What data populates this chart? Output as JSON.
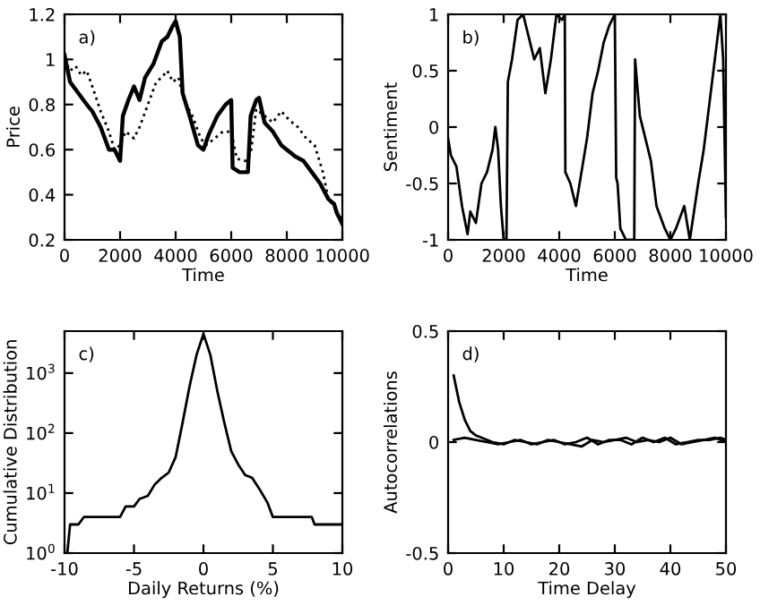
{
  "chart_data": [
    {
      "type": "line",
      "xlabel": "Time",
      "ylabel": "Price",
      "annotations": [
        "a)"
      ],
      "xlim": [
        0,
        10000
      ],
      "xticks": [
        0,
        2000,
        4000,
        6000,
        8000,
        10000
      ],
      "ylim": [
        0.2,
        1.2
      ],
      "yticks": [
        0.2,
        0.4,
        0.6,
        0.8,
        1,
        1.2
      ],
      "grid": false,
      "series": [
        {
          "color": "#000000",
          "line_style": "solid",
          "x": [
            0,
            200,
            500,
            800,
            1000,
            1300,
            1600,
            1800,
            2000,
            2100,
            2300,
            2500,
            2700,
            2900,
            3200,
            3500,
            3700,
            3900,
            4000,
            4150,
            4250,
            4500,
            4800,
            5000,
            5200,
            5500,
            5800,
            6000,
            6050,
            6300,
            6600,
            6700,
            6900,
            7000,
            7200,
            7500,
            7800,
            8000,
            8300,
            8600,
            8900,
            9200,
            9500,
            9700,
            9800,
            10000
          ],
          "values": [
            1.02,
            0.9,
            0.85,
            0.8,
            0.77,
            0.7,
            0.6,
            0.6,
            0.55,
            0.75,
            0.82,
            0.88,
            0.82,
            0.92,
            0.98,
            1.08,
            1.1,
            1.15,
            1.17,
            1.1,
            0.85,
            0.75,
            0.62,
            0.6,
            0.67,
            0.75,
            0.8,
            0.82,
            0.52,
            0.5,
            0.5,
            0.75,
            0.82,
            0.83,
            0.72,
            0.68,
            0.62,
            0.6,
            0.57,
            0.55,
            0.5,
            0.45,
            0.38,
            0.36,
            0.32,
            0.27
          ]
        },
        {
          "color": "#000000",
          "line_style": "dotted",
          "x": [
            0,
            200,
            400,
            600,
            800,
            1000,
            1300,
            1600,
            1800,
            2000,
            2200,
            2500,
            2700,
            3000,
            3300,
            3500,
            3700,
            3900,
            4100,
            4300,
            4600,
            4900,
            5100,
            5400,
            5700,
            6000,
            6200,
            6500,
            6700,
            6900,
            7200,
            7500,
            7800,
            8100,
            8400,
            8700,
            9000,
            9300,
            9500,
            9700,
            9850,
            10000
          ],
          "values": [
            1.0,
            0.95,
            0.97,
            0.93,
            0.95,
            0.88,
            0.77,
            0.68,
            0.6,
            0.62,
            0.68,
            0.65,
            0.7,
            0.8,
            0.9,
            0.92,
            0.95,
            0.9,
            0.92,
            0.82,
            0.75,
            0.65,
            0.62,
            0.65,
            0.68,
            0.68,
            0.56,
            0.55,
            0.58,
            0.78,
            0.75,
            0.72,
            0.77,
            0.73,
            0.7,
            0.65,
            0.62,
            0.5,
            0.38,
            0.35,
            0.3,
            0.3
          ]
        }
      ]
    },
    {
      "type": "line",
      "xlabel": "Time",
      "ylabel": "Sentiment",
      "annotations": [
        "b)"
      ],
      "xlim": [
        0,
        10000
      ],
      "xticks": [
        0,
        2000,
        4000,
        6000,
        8000,
        10000
      ],
      "ylim": [
        -1,
        1
      ],
      "yticks": [
        -1,
        -0.5,
        0,
        0.5,
        1
      ],
      "grid": false,
      "series": [
        {
          "color": "#000000",
          "line_style": "solid",
          "x": [
            0,
            100,
            300,
            500,
            700,
            800,
            1000,
            1200,
            1400,
            1600,
            1700,
            1800,
            1900,
            2000,
            2100,
            2150,
            2300,
            2500,
            2700,
            2900,
            3100,
            3300,
            3500,
            3700,
            3900,
            4100,
            4200,
            4220,
            4400,
            4600,
            4800,
            5000,
            5200,
            5400,
            5600,
            5800,
            6000,
            6050,
            6100,
            6200,
            6400,
            6500,
            6700,
            6730,
            6900,
            7100,
            7300,
            7500,
            7800,
            8000,
            8200,
            8500,
            8700,
            9000,
            9200,
            9400,
            9600,
            9800,
            9900,
            10000
          ],
          "values": [
            -0.1,
            -0.25,
            -0.35,
            -0.7,
            -0.95,
            -0.75,
            -0.85,
            -0.5,
            -0.4,
            -0.2,
            0,
            -0.2,
            -0.7,
            -1,
            -1,
            0.4,
            0.6,
            0.95,
            1,
            0.8,
            0.6,
            0.7,
            0.3,
            0.6,
            1,
            0.95,
            1,
            -0.4,
            -0.5,
            -0.7,
            -0.4,
            -0.1,
            0.3,
            0.5,
            0.75,
            0.9,
            1,
            -0.45,
            -0.5,
            -0.9,
            -1,
            -1,
            -1,
            0.6,
            0.1,
            -0.1,
            -0.3,
            -0.7,
            -0.9,
            -1,
            -0.9,
            -0.7,
            -1,
            -0.5,
            -0.2,
            0.2,
            0.6,
            1,
            0.6,
            -0.8
          ]
        }
      ]
    },
    {
      "type": "line",
      "xlabel": "Daily Returns (%)",
      "ylabel": "Cumulative Distribution",
      "annotations": [
        "c)"
      ],
      "log": "y",
      "xlim": [
        -10,
        10
      ],
      "xticks": [
        -10,
        -5,
        0,
        5,
        10
      ],
      "ylim": [
        1,
        5000
      ],
      "yticks": [
        {
          "value": 1,
          "label": "10$^{0}$"
        },
        {
          "value": 10,
          "label": "10$^{1}$"
        },
        {
          "value": 100,
          "label": "10$^{2}$"
        },
        {
          "value": 1000,
          "label": "10$^{3}$"
        }
      ],
      "grid": false,
      "series": [
        {
          "color": "#000000",
          "line_style": "solid",
          "x": [
            -9.8,
            -9.6,
            -9,
            -8.6,
            -6,
            -5.6,
            -5,
            -4.6,
            -4,
            -3.5,
            -3,
            -2.5,
            -2,
            -1.5,
            -1,
            -0.5,
            0,
            0.5,
            1,
            1.5,
            2,
            2.5,
            3,
            3.5,
            4,
            4.6,
            5,
            6,
            7.8,
            8,
            10
          ],
          "values": [
            1,
            3,
            3,
            4,
            4,
            6,
            6,
            8,
            9,
            14,
            18,
            22,
            40,
            150,
            600,
            2000,
            4500,
            2000,
            500,
            150,
            50,
            30,
            20,
            18,
            12,
            7,
            4,
            4,
            4,
            3,
            3
          ]
        }
      ]
    },
    {
      "type": "line",
      "xlabel": "Time Delay",
      "ylabel": "Autocorrelations",
      "annotations": [
        "d)"
      ],
      "xlim": [
        0,
        50
      ],
      "xticks": [
        0,
        10,
        20,
        30,
        40,
        50
      ],
      "ylim": [
        -0.5,
        0.5
      ],
      "yticks": [
        -0.5,
        0,
        0.5
      ],
      "grid": false,
      "series": [
        {
          "color": "#000000",
          "line_style": "solid",
          "x": [
            1,
            2,
            3,
            4,
            5,
            6,
            7,
            8,
            10,
            12,
            14,
            16,
            18,
            20,
            22,
            24,
            26,
            28,
            30,
            32,
            34,
            36,
            38,
            40,
            42,
            44,
            46,
            48,
            50
          ],
          "values": [
            0.3,
            0.18,
            0.1,
            0.05,
            0.03,
            0.02,
            0.01,
            0,
            -0.01,
            0.01,
            0,
            -0.01,
            0.01,
            0,
            -0.01,
            -0.02,
            0.01,
            0,
            0.01,
            0.02,
            0,
            0.01,
            0,
            0.02,
            -0.01,
            0,
            0.01,
            0.02,
            0
          ]
        },
        {
          "color": "#000000",
          "line_style": "solid",
          "x": [
            1,
            3,
            5,
            7,
            9,
            11,
            13,
            15,
            17,
            19,
            21,
            23,
            25,
            27,
            29,
            31,
            33,
            35,
            37,
            39,
            41,
            43,
            45,
            47,
            49,
            50
          ],
          "values": [
            0.01,
            0.02,
            0.01,
            0,
            -0.01,
            0,
            0.01,
            -0.01,
            0,
            0.01,
            -0.01,
            0,
            0.02,
            -0.01,
            0.01,
            0.01,
            -0.01,
            0.02,
            0,
            0.02,
            -0.01,
            0,
            0.01,
            0.01,
            0.02,
            0.01
          ]
        }
      ]
    }
  ]
}
